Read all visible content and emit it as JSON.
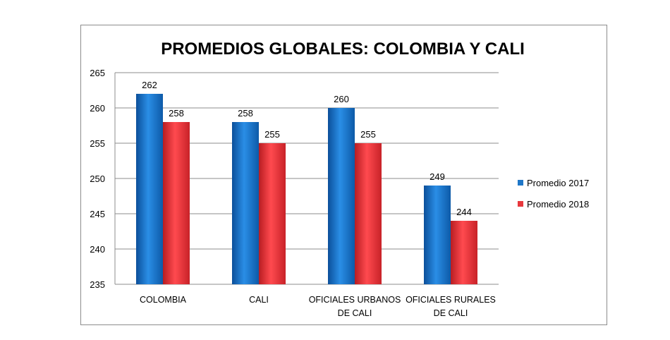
{
  "chart_data": {
    "type": "bar",
    "title": "PROMEDIOS GLOBALES: COLOMBIA Y CALI",
    "categories": [
      [
        "COLOMBIA"
      ],
      [
        "CALI"
      ],
      [
        "OFICIALES URBANOS",
        "DE CALI"
      ],
      [
        "OFICIALES RURALES",
        "DE CALI"
      ]
    ],
    "series": [
      {
        "name": "Promedio 2017",
        "color": "#1f77c8",
        "values": [
          262,
          258,
          260,
          249
        ]
      },
      {
        "name": "Promedio 2018",
        "color": "#e8383d",
        "values": [
          258,
          255,
          255,
          244
        ]
      }
    ],
    "ylim": [
      235,
      265
    ],
    "yticks": [
      235,
      240,
      245,
      250,
      255,
      260,
      265
    ],
    "grid": true,
    "legend": "right",
    "xlabel": "",
    "ylabel": ""
  }
}
